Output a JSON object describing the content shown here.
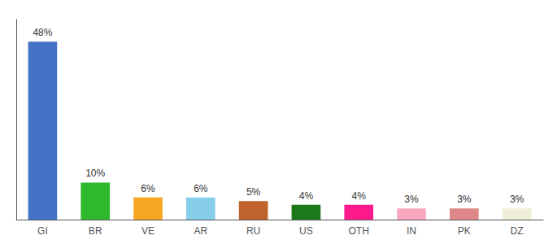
{
  "chart_data": {
    "type": "bar",
    "categories": [
      "GI",
      "BR",
      "VE",
      "AR",
      "RU",
      "US",
      "OTH",
      "IN",
      "PK",
      "DZ"
    ],
    "values": [
      48,
      10,
      6,
      6,
      5,
      4,
      4,
      3,
      3,
      3
    ],
    "value_labels": [
      "48%",
      "10%",
      "6%",
      "6%",
      "5%",
      "4%",
      "4%",
      "3%",
      "3%",
      "3%"
    ],
    "colors": [
      "#4472c4",
      "#2db82d",
      "#f5a623",
      "#87ceeb",
      "#c0622b",
      "#1a7a1a",
      "#ff1a8c",
      "#f9a8c0",
      "#e08888",
      "#efefd8"
    ],
    "ylim": [
      0,
      54
    ],
    "yticks": [],
    "grid": false,
    "data_labels": true,
    "tick_labels": "x"
  }
}
